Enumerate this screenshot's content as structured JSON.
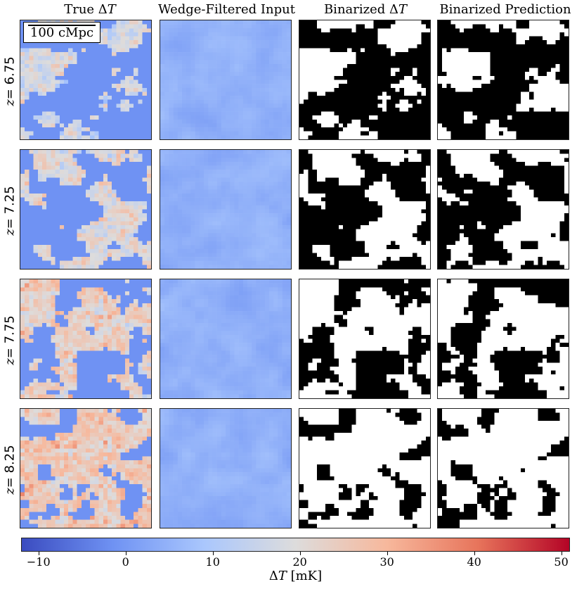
{
  "columns": [
    {
      "prefix": "True Δ",
      "var": "T"
    },
    {
      "prefix": "Wedge-Filtered Input",
      "var": ""
    },
    {
      "prefix": "Binarized Δ",
      "var": "T"
    },
    {
      "prefix": "Binarized Prediction",
      "var": ""
    }
  ],
  "rows": [
    {
      "z_symbol": "z",
      "z_value": " = 6.75"
    },
    {
      "z_symbol": "z",
      "z_value": " = 7.25"
    },
    {
      "z_symbol": "z",
      "z_value": " = 7.75"
    },
    {
      "z_symbol": "z",
      "z_value": " = 8.25"
    }
  ],
  "scalebar_label": "100 cMpc",
  "colorbar": {
    "title_prefix": "Δ",
    "title_var": "T",
    "title_unit": " [mK]",
    "min": -12,
    "max": 51,
    "ticks": [
      -10,
      0,
      10,
      20,
      30,
      40,
      50
    ],
    "tick_labels": [
      "−10",
      "0",
      "10",
      "20",
      "30",
      "40",
      "50"
    ],
    "colormap": [
      "#3b4cc0",
      "#6f92f3",
      "#aac7fd",
      "#dddcdc",
      "#f7b89c",
      "#e7745b",
      "#b40426"
    ]
  },
  "chart_data": {
    "type": "heatmap",
    "panel_grid": {
      "rows": 4,
      "cols": 4
    },
    "row_labels": [
      "z = 6.75",
      "z = 7.25",
      "z = 7.75",
      "z = 8.25"
    ],
    "column_titles": [
      "True ΔT",
      "Wedge-Filtered Input",
      "Binarized ΔT",
      "Binarized Prediction"
    ],
    "neutral_fraction_by_row": [
      0.35,
      0.45,
      0.55,
      0.75
    ],
    "colorbar": {
      "label": "ΔT [mK]",
      "range": [
        -12,
        51
      ],
      "ticks": [
        -10,
        0,
        10,
        20,
        30,
        40,
        50
      ]
    },
    "binary_colors": {
      "ionized": "#ffffff",
      "neutral": "#000000"
    },
    "ionized_color": "#6f92f3"
  }
}
